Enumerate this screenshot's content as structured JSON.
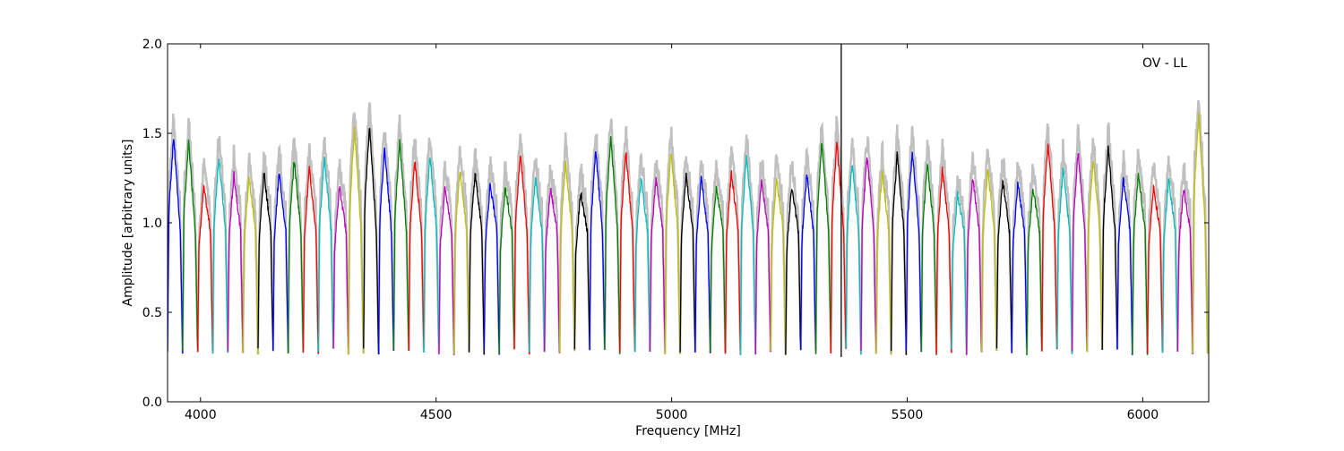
{
  "chart_data": {
    "type": "line",
    "title": "",
    "annotation": "OV - LL",
    "xlabel": "Frequency [MHz]",
    "ylabel": "Amplitude [arbitrary units]",
    "xlim": [
      3930,
      6140
    ],
    "ylim": [
      0.0,
      2.0
    ],
    "xticks": [
      4000,
      4500,
      5000,
      5500,
      6000
    ],
    "yticks": [
      "0.0",
      "0.5",
      "1.0",
      "1.5",
      "2.0"
    ],
    "grid": false,
    "legend": "none",
    "color_cycle": [
      "#0000ff",
      "#008000",
      "#ff0000",
      "#00bfbf",
      "#bf00bf",
      "#bfbf00",
      "#000000"
    ],
    "background_trace_color": "#c0c0c0",
    "segment_width_mhz": 32,
    "segment_start_mhz": 3930,
    "segment_edge_level": 0.28,
    "segment_peaks": [
      1.48,
      1.45,
      1.2,
      1.37,
      1.27,
      1.25,
      1.28,
      1.28,
      1.35,
      1.3,
      1.37,
      1.2,
      1.52,
      1.54,
      1.42,
      1.45,
      1.35,
      1.38,
      1.2,
      1.3,
      1.28,
      1.22,
      1.2,
      1.39,
      1.25,
      1.2,
      1.33,
      1.17,
      1.4,
      1.48,
      1.4,
      1.25,
      1.25,
      1.4,
      1.27,
      1.25,
      1.2,
      1.28,
      1.37,
      1.24,
      1.25,
      1.2,
      1.27,
      1.45,
      1.45,
      1.33,
      1.38,
      1.28,
      1.38,
      1.4,
      1.33,
      1.3,
      1.16,
      1.25,
      1.3,
      1.24,
      1.22,
      1.2,
      1.45,
      1.3,
      1.4,
      1.35,
      1.42,
      1.25,
      1.28,
      1.2,
      1.25,
      1.2,
      1.6
    ],
    "vertical_line_mhz": 5360
  }
}
